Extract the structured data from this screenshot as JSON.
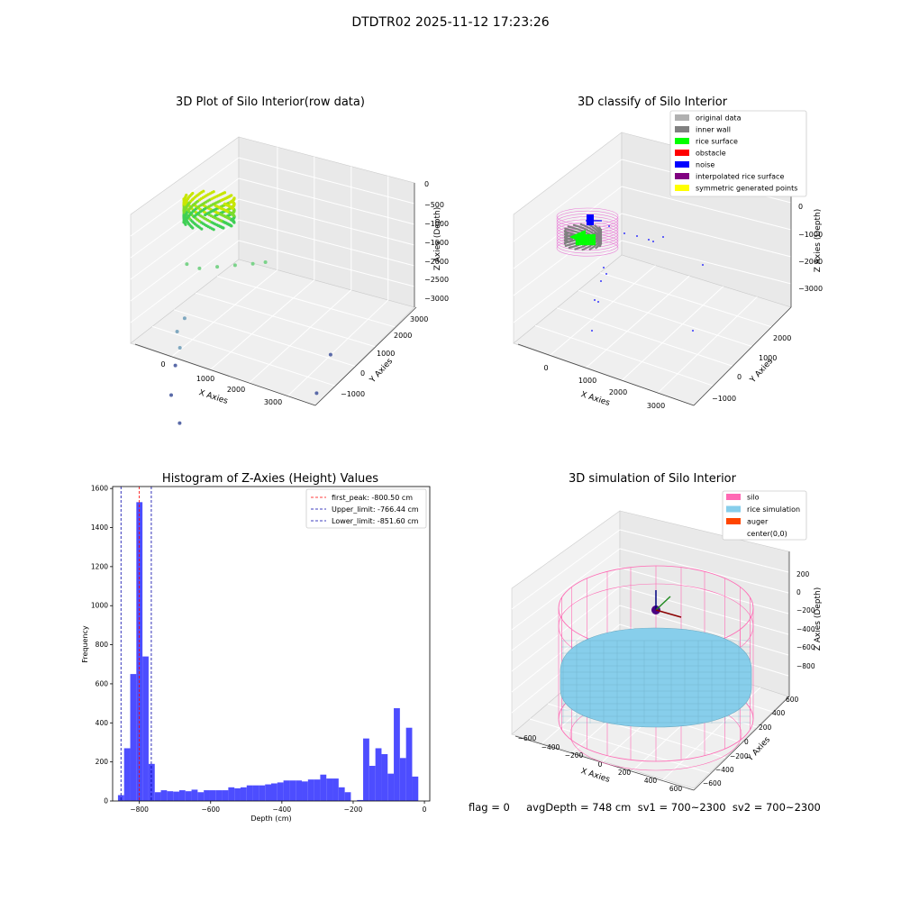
{
  "figure": {
    "suptitle": "DTDTR02 2025-11-12 17:23:26",
    "status_line": "flag = 0     avgDepth = 748 cm  sv1 = 700~2300  sv2 = 700~2300"
  },
  "colors": {
    "original_data": "#b0b0b0",
    "inner_wall": "#808080",
    "rice_surface": "#00ff00",
    "obstacle": "#ff0000",
    "noise": "#0000ff",
    "interpolated_rice_surface": "#800080",
    "symmetric_generated_points": "#ffff00",
    "silo": "#ff69b4",
    "rice_simulation": "#87ceeb",
    "auger": "#ff4500",
    "histogram_bar": "#4d4dff",
    "first_peak_line": "#ff0000",
    "limit_line": "#0000aa"
  },
  "chart_data": [
    {
      "id": "raw3d",
      "type": "scatter",
      "title": "3D Plot of Silo Interior(row data)",
      "xlabel": "X Axies",
      "ylabel": "Y Axies",
      "zlabel": "Z Axies (Depth)",
      "x_ticks": [
        "0",
        "1000",
        "2000",
        "3000"
      ],
      "y_ticks": [
        "−1000",
        "0",
        "1000",
        "2000",
        "3000"
      ],
      "z_ticks": [
        "0",
        "−500",
        "−1000",
        "−1500",
        "−2000",
        "−2500",
        "−3000"
      ],
      "outlier_points": [
        {
          "x": 600,
          "y": 900,
          "z": -900
        },
        {
          "x": 800,
          "y": 1000,
          "z": -1000
        },
        {
          "x": 1100,
          "y": 1100,
          "z": -1000
        },
        {
          "x": 1400,
          "y": 1200,
          "z": -1000
        },
        {
          "x": 1700,
          "y": 1300,
          "z": -1000
        },
        {
          "x": 1900,
          "y": 1400,
          "z": -1000
        },
        {
          "x": 600,
          "y": 800,
          "z": -1800
        },
        {
          "x": 500,
          "y": 700,
          "z": -2000
        },
        {
          "x": 600,
          "y": 600,
          "z": -2250
        },
        {
          "x": 600,
          "y": 400,
          "z": -2500
        },
        {
          "x": 700,
          "y": 0,
          "z": -2900
        },
        {
          "x": 1000,
          "y": -300,
          "z": -3300
        },
        {
          "x": 3300,
          "y": 1100,
          "z": -2500
        },
        {
          "x": 3300,
          "y": 500,
          "z": -3000
        }
      ]
    },
    {
      "id": "class3d",
      "type": "scatter",
      "title": "3D classify of Silo Interior",
      "xlabel": "X Axies",
      "ylabel": "Y Axies",
      "zlabel": "Z Axies (Depth)",
      "x_ticks": [
        "0",
        "1000",
        "2000",
        "3000"
      ],
      "y_ticks": [
        "−1000",
        "0",
        "1000",
        "2000"
      ],
      "z_ticks": [
        "0",
        "−1000",
        "−2000",
        "−3000"
      ],
      "legend": [
        "original data",
        "inner wall",
        "rice surface",
        "obstacle",
        "noise",
        "interpolated rice surface",
        "symmetric generated points"
      ],
      "legend_loc": "upper right"
    },
    {
      "id": "hist",
      "type": "bar",
      "title": "Histogram of Z-Axies (Height) Values",
      "xlabel": "Depth (cm)",
      "ylabel": "Frequency",
      "xlim": [
        -875,
        15
      ],
      "ylim": [
        0,
        1610
      ],
      "x_ticks": [
        -800,
        -600,
        -400,
        -200,
        0
      ],
      "x_tick_labels": [
        "−800",
        "−600",
        "−400",
        "−200",
        "0"
      ],
      "y_ticks": [
        0,
        200,
        400,
        600,
        800,
        1000,
        1200,
        1400,
        1600
      ],
      "bin_start": -860,
      "bin_width": 17.2,
      "values": [
        30,
        270,
        650,
        1530,
        740,
        190,
        45,
        55,
        50,
        48,
        55,
        50,
        58,
        45,
        55,
        55,
        55,
        55,
        70,
        65,
        70,
        80,
        80,
        80,
        85,
        90,
        95,
        105,
        105,
        105,
        100,
        110,
        110,
        135,
        115,
        115,
        70,
        45,
        0,
        5,
        320,
        180,
        270,
        240,
        140,
        475,
        220,
        375,
        125,
        0
      ],
      "vlines": [
        {
          "label": "first_peak: -800.50 cm",
          "x": -800.5,
          "color": "#ff0000"
        },
        {
          "label": "Upper_limit: -766.44 cm",
          "x": -766.44,
          "color": "#0000aa"
        },
        {
          "label": "Lower_limit: -851.60 cm",
          "x": -851.6,
          "color": "#0000aa"
        }
      ],
      "legend_loc": "upper right"
    },
    {
      "id": "sim3d",
      "type": "scatter",
      "title": "3D simulation of Silo Interior",
      "xlabel": "X Axies",
      "ylabel": "Y Axies",
      "zlabel": "Z Axies (Depth)",
      "x_ticks": [
        "−600",
        "−400",
        "−200",
        "0",
        "200",
        "400",
        "600"
      ],
      "y_ticks": [
        "−600",
        "−400",
        "−200",
        "0",
        "200",
        "400",
        "600"
      ],
      "z_ticks": [
        "200",
        "0",
        "−200",
        "−400",
        "−600",
        "−800"
      ],
      "legend": [
        "silo",
        "rice simulation",
        "auger",
        "center(0,0)"
      ],
      "legend_loc": "upper right",
      "silo_radius": 650,
      "silo_top": 100,
      "silo_bottom": -1000,
      "rice_level": -748
    }
  ]
}
